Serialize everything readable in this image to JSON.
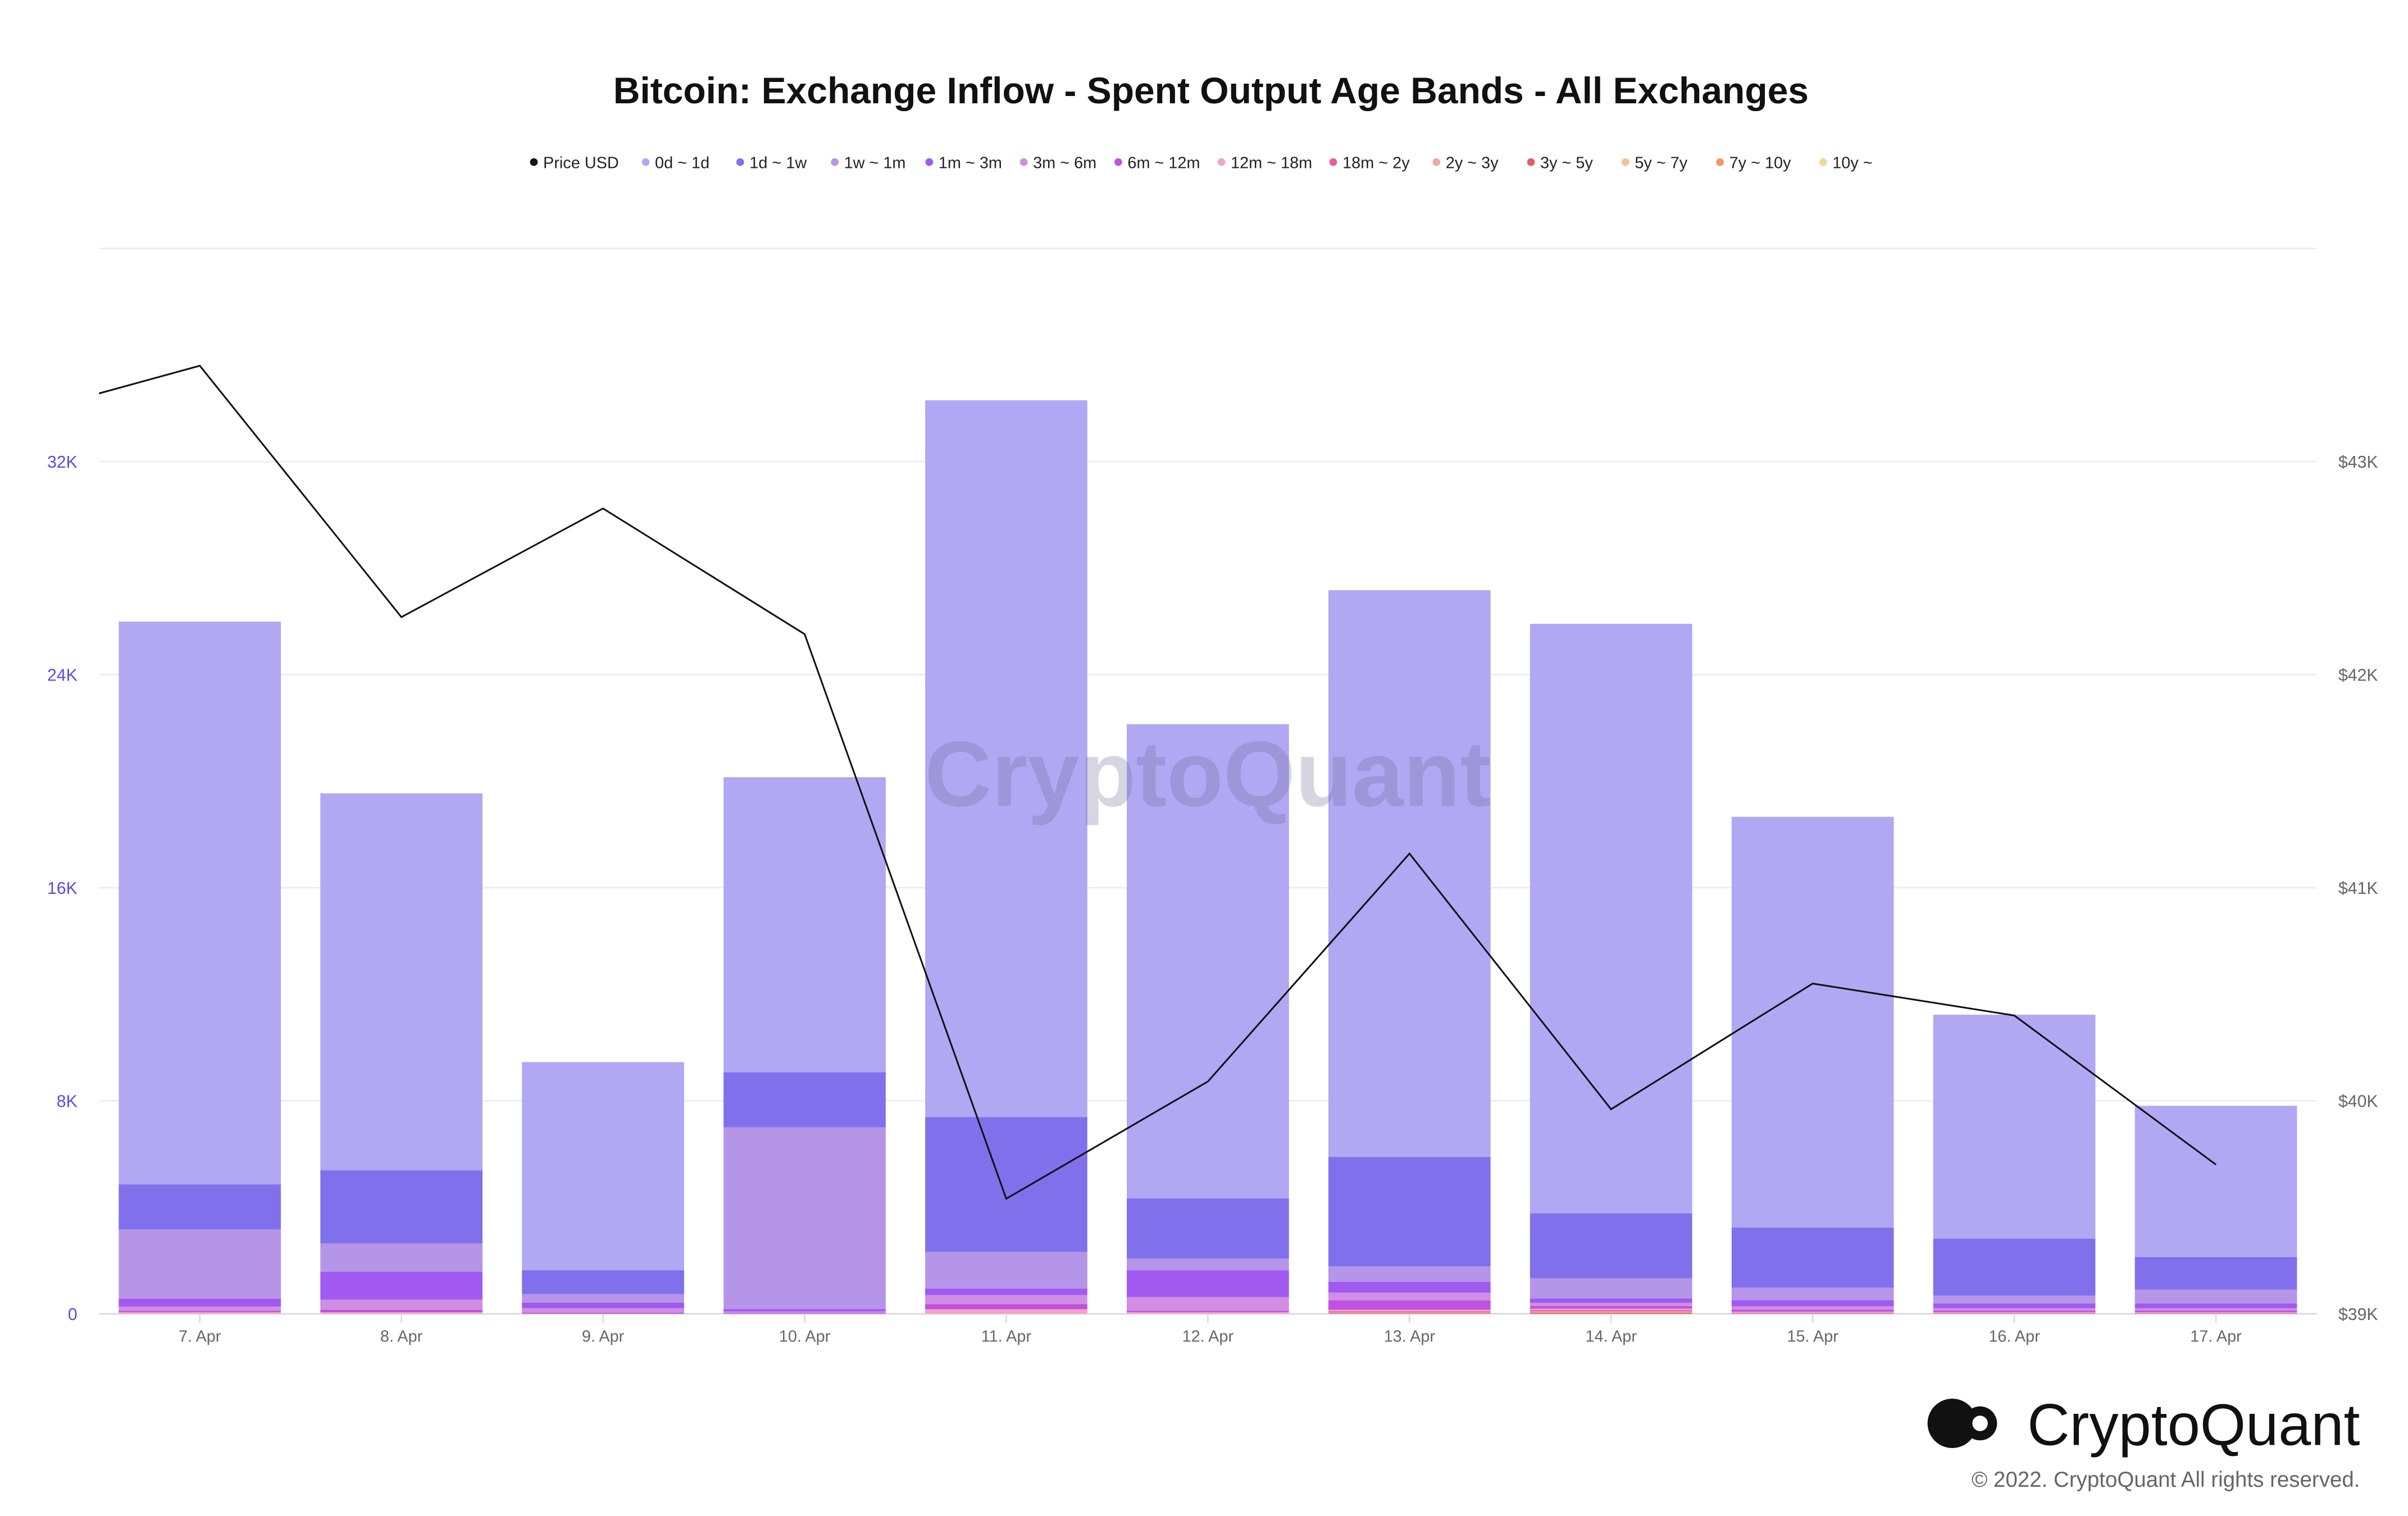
{
  "title": "Bitcoin: Exchange Inflow - Spent Output Age Bands - All Exchanges",
  "watermark": "CryptoQuant",
  "brand": {
    "name": "CryptoQuant",
    "copyright": "© 2022. CryptoQuant All rights reserved."
  },
  "chart_data": {
    "type": "bar",
    "stacked": true,
    "title": "Bitcoin: Exchange Inflow - Spent Output Age Bands - All Exchanges",
    "categories": [
      "7. Apr",
      "8. Apr",
      "9. Apr",
      "10. Apr",
      "11. Apr",
      "12. Apr",
      "13. Apr",
      "14. Apr",
      "15. Apr",
      "16. Apr",
      "17. Apr"
    ],
    "ylim": [
      0,
      40000
    ],
    "yticks": [
      0,
      8000,
      16000,
      24000,
      32000
    ],
    "ytick_labels": [
      "0",
      "8K",
      "16K",
      "24K",
      "32K"
    ],
    "y2lim": [
      39000,
      44000
    ],
    "y2ticks": [
      39000,
      40000,
      41000,
      42000,
      43000
    ],
    "y2tick_labels": [
      "$39K",
      "$40K",
      "$41K",
      "$42K",
      "$43K"
    ],
    "grid": true,
    "legend_position": "top",
    "series": [
      {
        "name": "0d ~ 1d",
        "color": "#b0a8f2",
        "values": [
          21130,
          14150,
          7820,
          11080,
          26910,
          17810,
          21280,
          22140,
          15420,
          8410,
          5680
        ]
      },
      {
        "name": "1d ~ 1w",
        "color": "#8070ec",
        "values": [
          1690,
          2750,
          890,
          2070,
          5070,
          2260,
          4110,
          2440,
          2260,
          2140,
          1220
        ]
      },
      {
        "name": "1w ~ 1m",
        "color": "#b595e8",
        "values": [
          2600,
          1060,
          320,
          6820,
          1370,
          440,
          580,
          750,
          470,
          290,
          520
        ]
      },
      {
        "name": "1m ~ 3m",
        "color": "#a05af0",
        "values": [
          300,
          1050,
          210,
          90,
          250,
          1000,
          410,
          170,
          230,
          180,
          180
        ]
      },
      {
        "name": "3m ~ 6m",
        "color": "#cf8ee3",
        "values": [
          160,
          380,
          170,
          60,
          340,
          520,
          290,
          120,
          120,
          90,
          90
        ]
      },
      {
        "name": "6m ~ 12m",
        "color": "#c050e0",
        "values": [
          50,
          90,
          40,
          30,
          190,
          50,
          350,
          100,
          80,
          60,
          60
        ]
      },
      {
        "name": "12m ~ 18m",
        "color": "#f2a3c8",
        "values": [
          60,
          60,
          0,
          0,
          170,
          60,
          60,
          50,
          50,
          40,
          40
        ]
      },
      {
        "name": "18m ~ 2y",
        "color": "#e060a0",
        "values": [
          0,
          0,
          0,
          0,
          0,
          0,
          40,
          50,
          30,
          20,
          20
        ]
      },
      {
        "name": "2y ~ 3y",
        "color": "#f0a8a0",
        "values": [
          0,
          0,
          0,
          0,
          0,
          0,
          30,
          50,
          0,
          0,
          0
        ]
      },
      {
        "name": "3y ~ 5y",
        "color": "#e06060",
        "values": [
          0,
          0,
          0,
          0,
          0,
          0,
          20,
          40,
          0,
          0,
          0
        ]
      },
      {
        "name": "5y ~ 7y",
        "color": "#f5c09a",
        "values": [
          0,
          0,
          0,
          0,
          0,
          0,
          0,
          0,
          0,
          0,
          0
        ]
      },
      {
        "name": "7y ~ 10y",
        "color": "#f0985a",
        "values": [
          0,
          0,
          0,
          0,
          0,
          0,
          0,
          0,
          0,
          0,
          0
        ]
      },
      {
        "name": "10y ~",
        "color": "#f0d898",
        "values": [
          0,
          0,
          0,
          0,
          0,
          0,
          0,
          0,
          0,
          0,
          0
        ]
      }
    ],
    "price": {
      "name": "Price USD",
      "color": "#111111",
      "axis": "right",
      "x": [
        "6. Apr",
        "7. Apr",
        "8. Apr",
        "9. Apr",
        "10. Apr",
        "11. Apr",
        "12. Apr",
        "13. Apr",
        "14. Apr",
        "15. Apr",
        "16. Apr",
        "17. Apr"
      ],
      "values": [
        43190,
        43450,
        42270,
        42780,
        42190,
        39540,
        40090,
        41160,
        39960,
        40550,
        40400,
        39700
      ]
    }
  }
}
